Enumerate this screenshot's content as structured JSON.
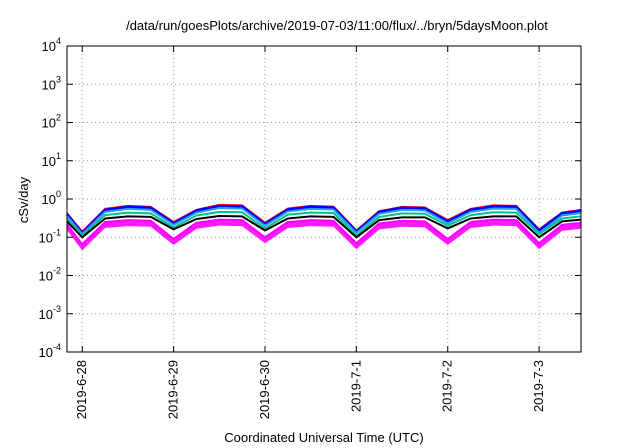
{
  "chart_data": {
    "type": "area",
    "title": "/data/run/goesPlots/archive/2019-07-03/11:00/flux/../bryn/5daysMoon.plot",
    "xlabel": "Coordinated Universal Time (UTC)",
    "ylabel": "cSv/day",
    "yscale": "log",
    "ylim": [
      0.0001,
      10000
    ],
    "y_ticks": [
      {
        "base": "10",
        "exp": "-4",
        "value": 0.0001
      },
      {
        "base": "10",
        "exp": "-3",
        "value": 0.001
      },
      {
        "base": "10",
        "exp": "-2",
        "value": 0.01
      },
      {
        "base": "10",
        "exp": "-1",
        "value": 0.1
      },
      {
        "base": "10",
        "exp": "0",
        "value": 1
      },
      {
        "base": "10",
        "exp": "1",
        "value": 10
      },
      {
        "base": "10",
        "exp": "2",
        "value": 100
      },
      {
        "base": "10",
        "exp": "3",
        "value": 1000
      },
      {
        "base": "10",
        "exp": "4",
        "value": 10000
      }
    ],
    "x_ticks": [
      "2019-6-28",
      "2019-6-29",
      "2019-6-30",
      "2019-7-1",
      "2019-7-2",
      "2019-7-3"
    ],
    "xlim": [
      "2019-06-27 20:00",
      "2019-07-03 11:00"
    ],
    "grid": true,
    "x": [
      "2019-06-27 20:00",
      "2019-06-28 00:00",
      "2019-06-28 06:00",
      "2019-06-28 12:00",
      "2019-06-28 18:00",
      "2019-06-29 00:00",
      "2019-06-29 06:00",
      "2019-06-29 12:00",
      "2019-06-29 18:00",
      "2019-06-30 00:00",
      "2019-06-30 06:00",
      "2019-06-30 12:00",
      "2019-06-30 18:00",
      "2019-07-01 00:00",
      "2019-07-01 06:00",
      "2019-07-01 12:00",
      "2019-07-01 18:00",
      "2019-07-02 00:00",
      "2019-07-02 06:00",
      "2019-07-02 12:00",
      "2019-07-02 18:00",
      "2019-07-03 00:00",
      "2019-07-03 06:00",
      "2019-07-03 11:00"
    ],
    "series": [
      {
        "color": "#ff0000",
        "values": [
          0.42,
          0.14,
          0.55,
          0.66,
          0.62,
          0.25,
          0.52,
          0.7,
          0.68,
          0.24,
          0.56,
          0.66,
          0.63,
          0.15,
          0.48,
          0.62,
          0.6,
          0.28,
          0.55,
          0.68,
          0.66,
          0.16,
          0.44,
          0.52
        ]
      },
      {
        "color": "#0000ff",
        "values": [
          0.4,
          0.13,
          0.52,
          0.62,
          0.59,
          0.23,
          0.5,
          0.66,
          0.64,
          0.22,
          0.53,
          0.62,
          0.6,
          0.14,
          0.46,
          0.59,
          0.57,
          0.26,
          0.52,
          0.64,
          0.62,
          0.15,
          0.42,
          0.49
        ]
      },
      {
        "color": "#20a0ff",
        "values": [
          0.36,
          0.12,
          0.46,
          0.55,
          0.52,
          0.21,
          0.44,
          0.58,
          0.56,
          0.2,
          0.47,
          0.55,
          0.53,
          0.13,
          0.41,
          0.52,
          0.5,
          0.23,
          0.46,
          0.56,
          0.55,
          0.13,
          0.37,
          0.43
        ]
      },
      {
        "color": "#00c090",
        "values": [
          0.3,
          0.11,
          0.38,
          0.44,
          0.42,
          0.18,
          0.37,
          0.46,
          0.45,
          0.17,
          0.39,
          0.44,
          0.43,
          0.11,
          0.34,
          0.42,
          0.41,
          0.2,
          0.38,
          0.45,
          0.44,
          0.12,
          0.31,
          0.35
        ]
      },
      {
        "color": "#000000",
        "values": [
          0.26,
          0.1,
          0.31,
          0.35,
          0.34,
          0.16,
          0.3,
          0.36,
          0.35,
          0.15,
          0.31,
          0.35,
          0.34,
          0.1,
          0.28,
          0.33,
          0.33,
          0.17,
          0.31,
          0.35,
          0.35,
          0.1,
          0.26,
          0.29
        ]
      },
      {
        "color": "#ff00ff",
        "values": [
          0.22,
          0.065,
          0.25,
          0.28,
          0.27,
          0.09,
          0.24,
          0.29,
          0.28,
          0.1,
          0.25,
          0.28,
          0.27,
          0.07,
          0.23,
          0.27,
          0.26,
          0.09,
          0.25,
          0.29,
          0.28,
          0.07,
          0.21,
          0.24
        ]
      }
    ]
  }
}
